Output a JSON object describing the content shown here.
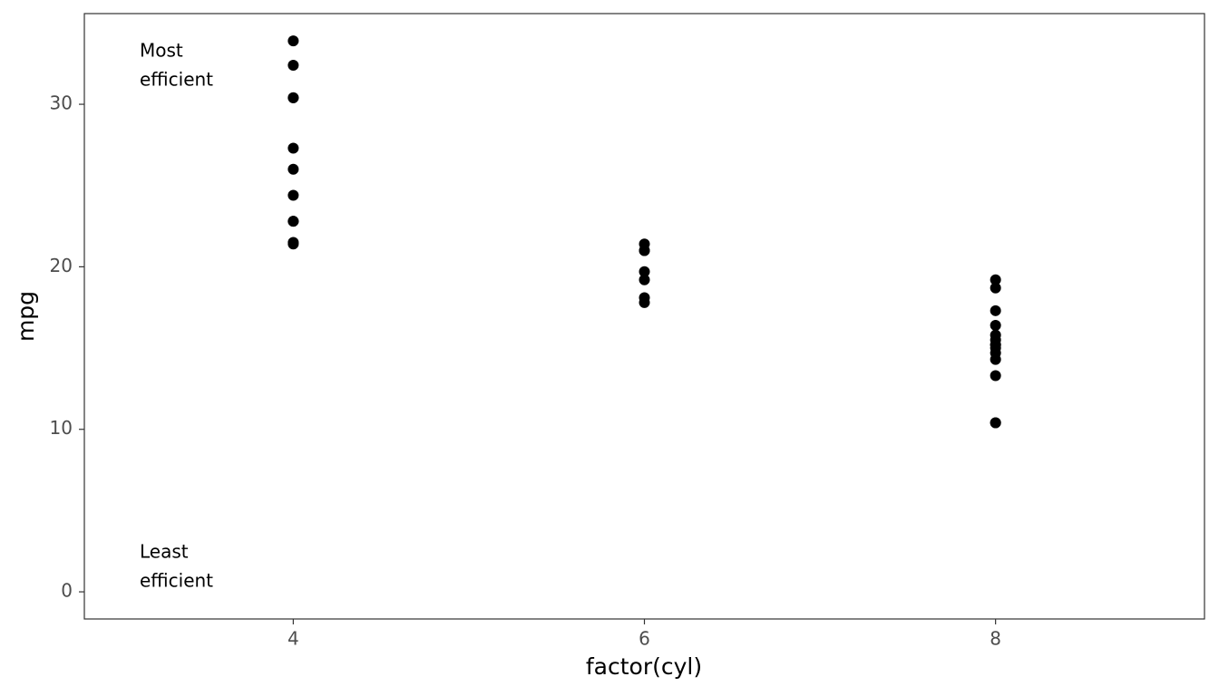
{
  "chart_data": {
    "type": "scatter",
    "x": [
      4,
      4,
      4,
      4,
      4,
      4,
      4,
      4,
      4,
      4,
      4,
      6,
      6,
      6,
      6,
      6,
      6,
      6,
      8,
      8,
      8,
      8,
      8,
      8,
      8,
      8,
      8,
      8,
      8,
      8,
      8,
      8
    ],
    "values": [
      22.8,
      24.4,
      22.8,
      32.4,
      30.4,
      33.9,
      21.5,
      27.3,
      26.0,
      30.4,
      21.4,
      21.0,
      21.0,
      21.4,
      18.1,
      19.2,
      17.8,
      19.7,
      18.7,
      14.3,
      16.4,
      17.3,
      15.2,
      10.4,
      10.4,
      14.7,
      15.5,
      15.2,
      13.3,
      19.2,
      15.8,
      15.0
    ],
    "color": "#000000",
    "xlabel": "factor(cyl)",
    "ylabel": "mpg",
    "xlim": [
      2.81,
      9.19
    ],
    "xticks": [
      4,
      6,
      8
    ],
    "ylim": [
      -1.67,
      35.58
    ],
    "yticks": [
      0,
      10,
      20,
      30
    ],
    "grid": false,
    "annotations": [
      [
        "Most",
        "efficient"
      ],
      [
        "Least",
        "efficient"
      ]
    ]
  }
}
